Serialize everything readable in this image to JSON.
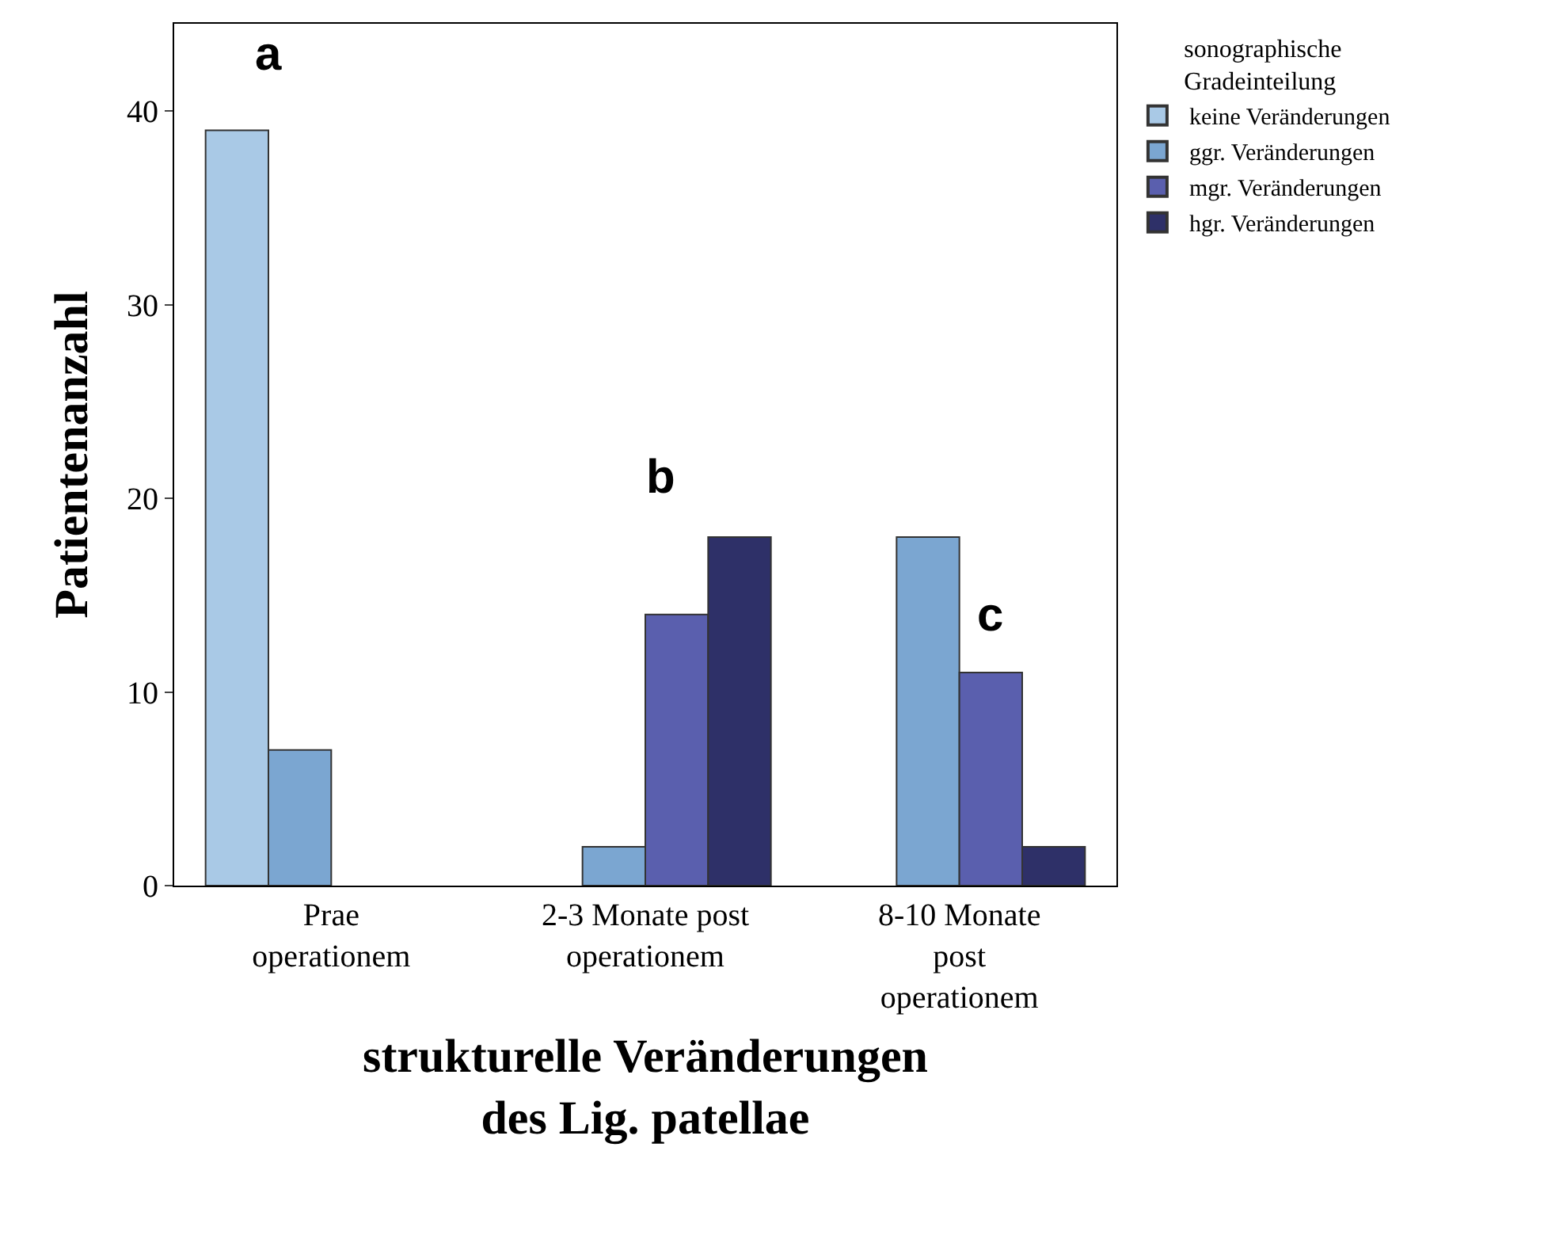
{
  "chart_data": {
    "type": "bar",
    "categories": [
      "Prae\noperationem",
      "2-3 Monate post\noperationem",
      "8-10 Monate\npost\noperationem"
    ],
    "series": [
      {
        "name": "keine Veränderungen",
        "color": "#a9c9e6",
        "values": [
          39,
          null,
          null
        ]
      },
      {
        "name": "ggr. Veränderungen",
        "color": "#7ba6d1",
        "values": [
          7,
          2,
          18
        ]
      },
      {
        "name": "mgr. Veränderungen",
        "color": "#5a5fae",
        "values": [
          null,
          14,
          11
        ]
      },
      {
        "name": "hgr. Veränderungen",
        "color": "#2e3068",
        "values": [
          null,
          18,
          2
        ]
      }
    ],
    "xlabel": "strukturelle Veränderungen\ndes Lig. patellae",
    "ylabel": "Patientenanzahl",
    "legend_title": "sonographische\nGradeinteilung",
    "legend": "top right",
    "ylim": [
      0,
      44.5
    ],
    "yticks": [
      0,
      10,
      20,
      30,
      40
    ],
    "annotations": [
      "a",
      "b",
      "c"
    ]
  }
}
